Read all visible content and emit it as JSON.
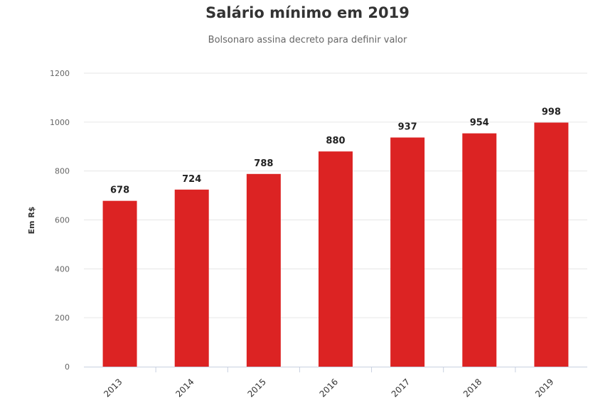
{
  "chart_data": {
    "type": "bar",
    "title": "Salário mínimo em 2019",
    "subtitle": "Bolsonaro assina decreto para definir valor",
    "xlabel": "",
    "ylabel": "Em R$",
    "categories": [
      "2013",
      "2014",
      "2015",
      "2016",
      "2017",
      "2018",
      "2019"
    ],
    "values": [
      678,
      724,
      788,
      880,
      937,
      954,
      998
    ],
    "data_labels": [
      "678",
      "724",
      "788",
      "880",
      "937",
      "954",
      "998"
    ],
    "ylim": [
      0,
      1200
    ],
    "yticks": [
      "0",
      "200",
      "400",
      "600",
      "800",
      "1000",
      "1200"
    ],
    "ytick_values": [
      0,
      200,
      400,
      600,
      800,
      1000,
      1200
    ],
    "grid": true,
    "legend": "none",
    "bar_color": "#dc2323"
  }
}
